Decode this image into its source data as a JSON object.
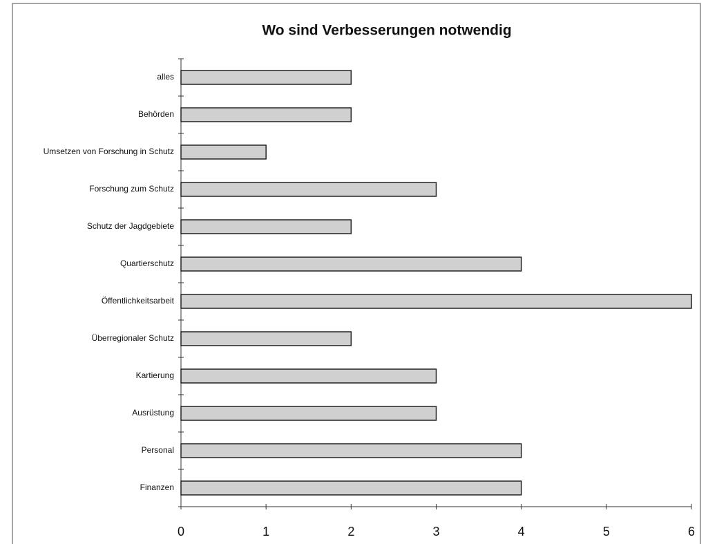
{
  "chart_data": {
    "type": "bar",
    "orientation": "horizontal",
    "title": "Wo sind Verbesserungen notwendig",
    "categories": [
      "alles",
      "Behörden",
      "Umsetzen von Forschung in Schutz",
      "Forschung zum Schutz",
      "Schutz der Jagdgebiete",
      "Quartierschutz",
      "Öffentlichkeitsarbeit",
      "Überregionaler Schutz",
      "Kartierung",
      "Ausrüstung",
      "Personal",
      "Finanzen"
    ],
    "values": [
      2,
      2,
      1,
      3,
      2,
      4,
      6,
      2,
      3,
      3,
      4,
      4
    ],
    "color": "#d0d0d0",
    "xlim": [
      0,
      6
    ],
    "xticks": [
      0,
      1,
      2,
      3,
      4,
      5,
      6
    ],
    "grid": false
  }
}
